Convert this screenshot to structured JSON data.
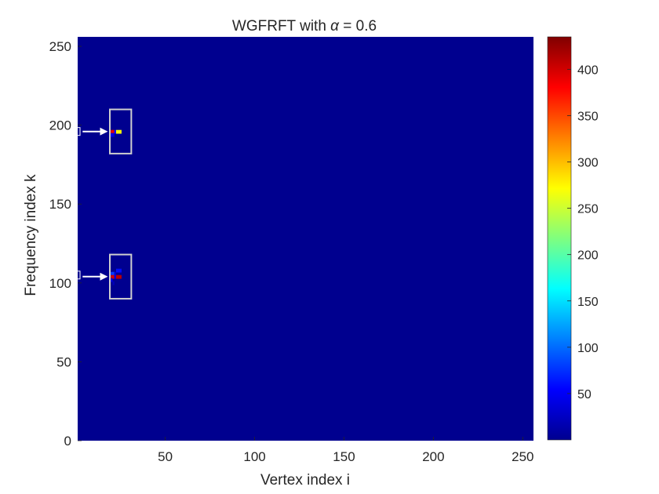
{
  "chart_data": {
    "type": "heatmap",
    "title_prefix": "WGFRFT with ",
    "title_symbol": "α",
    "title_suffix": " = 0.6",
    "xlabel": "Vertex index i",
    "ylabel": "Frequency index k",
    "xlim": [
      1,
      256
    ],
    "ylim": [
      0,
      256
    ],
    "xticks": [
      50,
      100,
      150,
      200,
      250
    ],
    "yticks": [
      0,
      50,
      100,
      150,
      200,
      250
    ],
    "colormap": "jet",
    "colorbar": {
      "range": [
        0,
        435
      ],
      "ticks": [
        50,
        100,
        150,
        200,
        250,
        300,
        350,
        400
      ]
    },
    "background_value": 3,
    "cells": [
      {
        "i": 20,
        "k": 196,
        "v": 390
      },
      {
        "i": 21,
        "k": 196,
        "v": 390
      },
      {
        "i": 22,
        "k": 196,
        "v": 60
      },
      {
        "i": 23,
        "k": 196,
        "v": 270
      },
      {
        "i": 24,
        "k": 196,
        "v": 270
      },
      {
        "i": 25,
        "k": 196,
        "v": 270
      },
      {
        "i": 20,
        "k": 194,
        "v": 50
      },
      {
        "i": 21,
        "k": 194,
        "v": 35
      },
      {
        "i": 20,
        "k": 106,
        "v": 80
      },
      {
        "i": 21,
        "k": 106,
        "v": 80
      },
      {
        "i": 22,
        "k": 106,
        "v": 30
      },
      {
        "i": 23,
        "k": 108,
        "v": 60
      },
      {
        "i": 24,
        "k": 108,
        "v": 60
      },
      {
        "i": 25,
        "k": 108,
        "v": 60
      },
      {
        "i": 20,
        "k": 104,
        "v": 400
      },
      {
        "i": 21,
        "k": 104,
        "v": 400
      },
      {
        "i": 22,
        "k": 104,
        "v": 40
      },
      {
        "i": 23,
        "k": 104,
        "v": 410
      },
      {
        "i": 24,
        "k": 104,
        "v": 410
      },
      {
        "i": 25,
        "k": 104,
        "v": 410
      },
      {
        "i": 20,
        "k": 102,
        "v": 40
      },
      {
        "i": 21,
        "k": 100,
        "v": 20
      }
    ],
    "highlight_boxes": [
      {
        "i_range": [
          19,
          31
        ],
        "k_range": [
          182,
          210
        ]
      },
      {
        "i_range": [
          19,
          31
        ],
        "k_range": [
          90,
          118
        ]
      }
    ],
    "arrows": [
      {
        "from_i": 2,
        "to_i": 17,
        "k": 196
      },
      {
        "from_i": 2,
        "to_i": 17,
        "k": 104
      }
    ],
    "markers": [
      {
        "i": 1,
        "k": 196
      },
      {
        "i": 1,
        "k": 105
      }
    ]
  }
}
